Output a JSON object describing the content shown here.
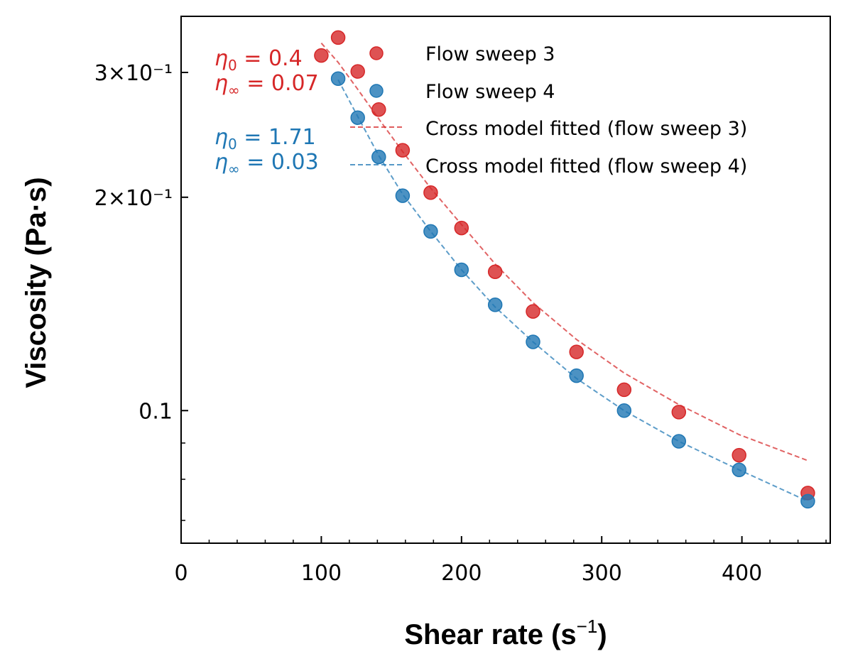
{
  "chart_data": {
    "type": "scatter",
    "title": "",
    "xlabel": "Shear rate (s",
    "xlabel_sup": "−1",
    "xlabel_close": ")",
    "ylabel": "Viscosity (Pa·s)",
    "xlim": [
      0,
      463
    ],
    "ylim": [
      0.065,
      0.36
    ],
    "yscale": "log",
    "grid": false,
    "legend_position": "top-right",
    "x_ticks": [
      0,
      100,
      200,
      300,
      400
    ],
    "x_tick_labels": [
      "0",
      "100",
      "200",
      "300",
      "400"
    ],
    "y_ticks": [
      {
        "value": 0.3,
        "label": "3×10⁻¹"
      },
      {
        "value": 0.2,
        "label": "2×10⁻¹"
      },
      {
        "value": 0.1,
        "label": "0.1"
      }
    ],
    "y_minor_ticks": [
      0.09,
      0.08,
      0.07
    ],
    "series": [
      {
        "name": "Flow sweep 3",
        "kind": "scatter",
        "color": "#d62728",
        "x": [
          100,
          112,
          126,
          141,
          158,
          178,
          200,
          224,
          251,
          282,
          316,
          355,
          398,
          447
        ],
        "y": [
          0.317,
          0.336,
          0.301,
          0.266,
          0.233,
          0.203,
          0.181,
          0.157,
          0.138,
          0.121,
          0.107,
          0.0995,
          0.0865,
          0.0765
        ]
      },
      {
        "name": "Flow sweep 4",
        "kind": "scatter",
        "color": "#1f77b4",
        "x": [
          112,
          126,
          141,
          158,
          178,
          200,
          224,
          251,
          282,
          316,
          355,
          398,
          447
        ],
        "y": [
          0.294,
          0.259,
          0.228,
          0.201,
          0.179,
          0.158,
          0.141,
          0.125,
          0.112,
          0.1,
          0.0905,
          0.0825,
          0.0745
        ]
      },
      {
        "name": "Cross model fitted (flow sweep 3)",
        "kind": "line",
        "dashed": true,
        "color": "#d62728",
        "x": [
          100,
          112,
          126,
          141,
          158,
          178,
          200,
          224,
          251,
          282,
          316,
          355,
          398,
          447
        ],
        "y": [
          0.33,
          0.31,
          0.284,
          0.258,
          0.232,
          0.206,
          0.183,
          0.161,
          0.142,
          0.126,
          0.113,
          0.102,
          0.0925,
          0.085
        ]
      },
      {
        "name": "Cross model fitted (flow sweep 4)",
        "kind": "line",
        "dashed": true,
        "color": "#1f77b4",
        "x": [
          112,
          126,
          141,
          158,
          178,
          200,
          224,
          251,
          282,
          316,
          355,
          398,
          447
        ],
        "y": [
          0.293,
          0.26,
          0.229,
          0.202,
          0.179,
          0.158,
          0.14,
          0.125,
          0.111,
          0.1,
          0.0905,
          0.0825,
          0.0745
        ]
      }
    ],
    "annotations": [
      {
        "symbol": "η",
        "sub": "0",
        "rest": " = 0.4",
        "color": "#d62728"
      },
      {
        "symbol": "η",
        "sub": "∞",
        "rest": " = 0.07",
        "color": "#d62728"
      },
      {
        "symbol": "η",
        "sub": "0",
        "rest": " = 1.71",
        "color": "#1f77b4"
      },
      {
        "symbol": "η",
        "sub": "∞",
        "rest": " = 0.03",
        "color": "#1f77b4"
      }
    ]
  }
}
